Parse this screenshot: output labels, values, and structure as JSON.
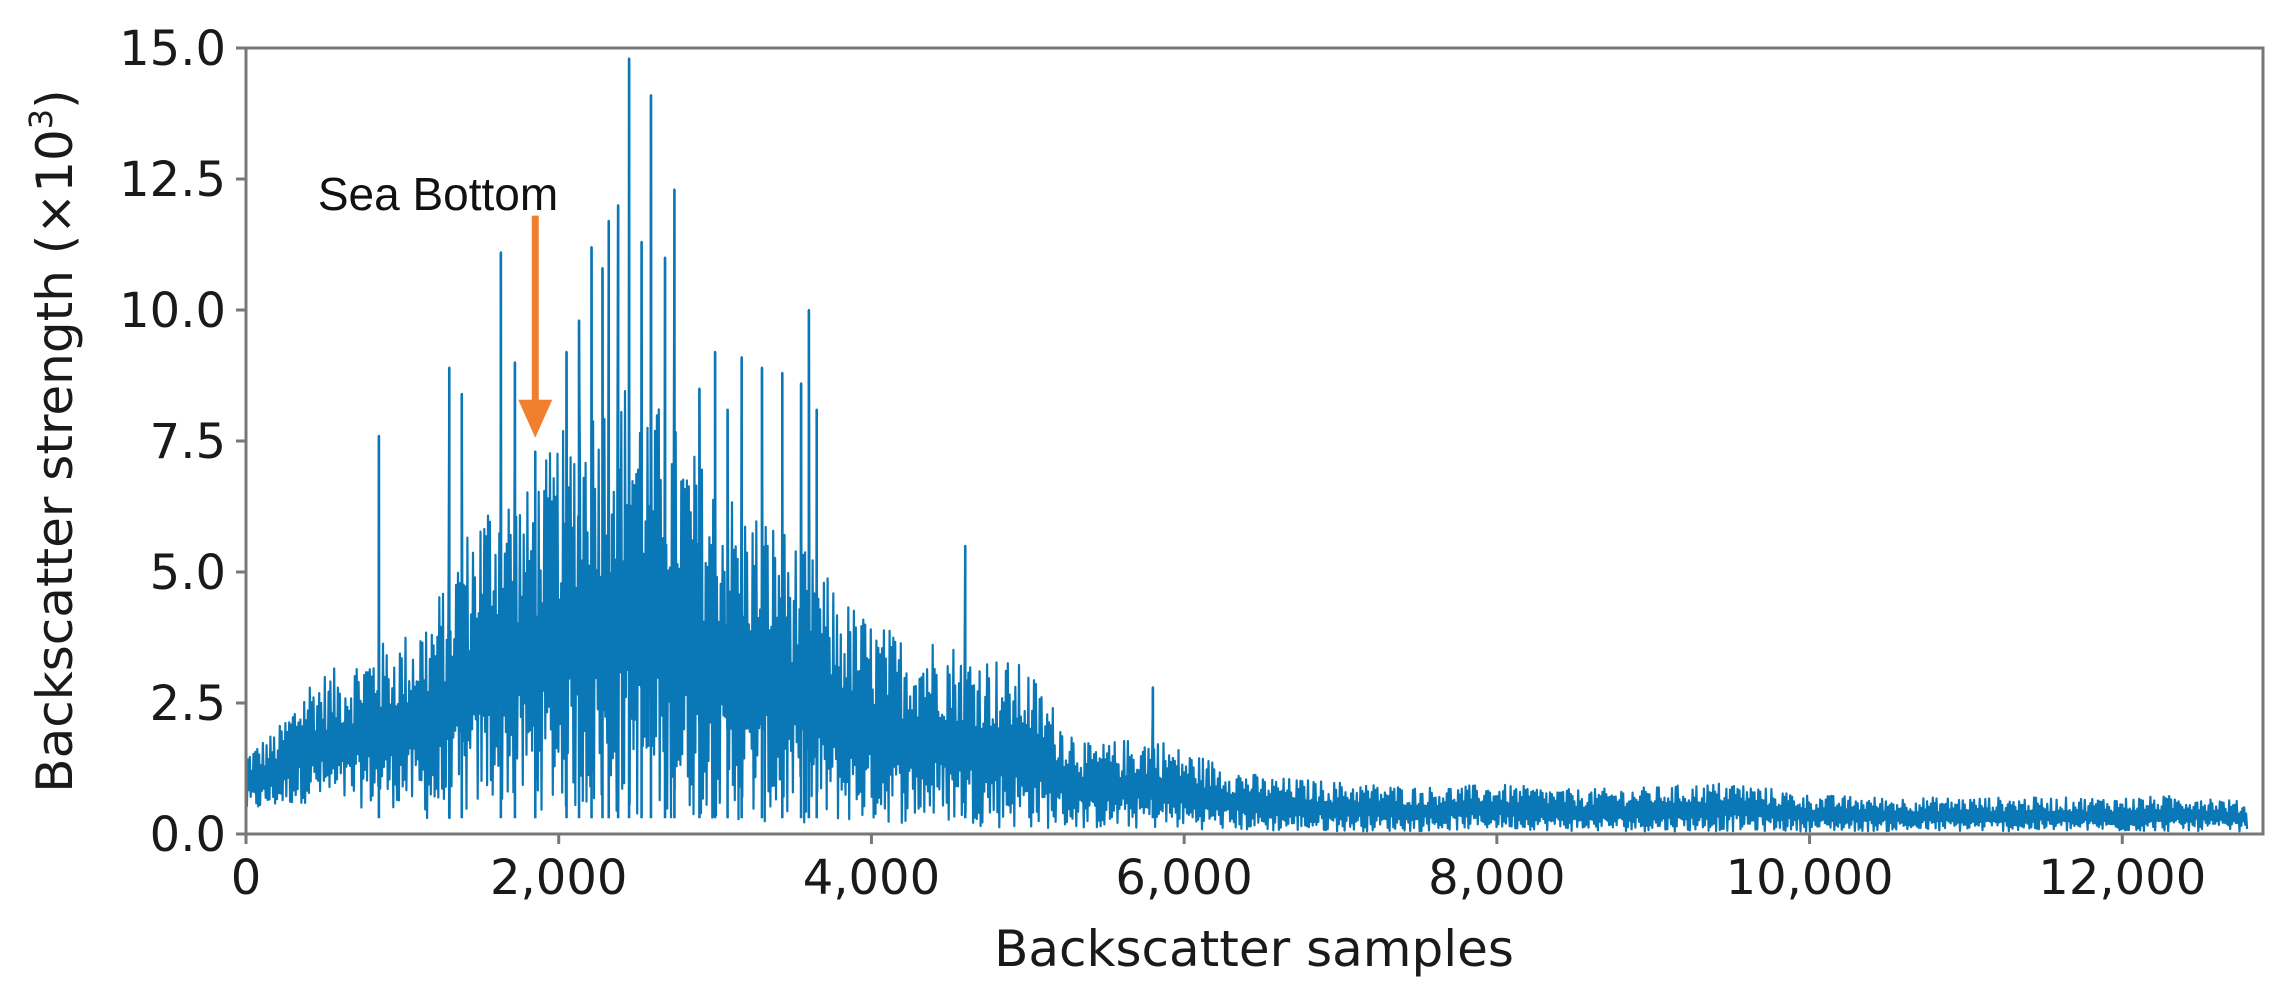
{
  "chart_data": {
    "type": "line",
    "title": "",
    "xlabel": "Backscatter samples",
    "ylabel_text": "Backscatter strength (×10",
    "ylabel_exp": "3",
    "ylabel_close": ")",
    "xlim": [
      0,
      12900
    ],
    "ylim": [
      0,
      15
    ],
    "x_ticks": [
      0,
      2000,
      4000,
      6000,
      8000,
      10000,
      12000
    ],
    "x_tick_labels": [
      "0",
      "2,000",
      "4,000",
      "6,000",
      "8,000",
      "10,000",
      "12,000"
    ],
    "y_ticks": [
      0,
      2.5,
      5,
      7.5,
      10,
      12.5,
      15
    ],
    "y_tick_labels": [
      "0.0",
      "2.5",
      "5.0",
      "7.5",
      "10.0",
      "12.5",
      "15.0"
    ],
    "grid": false,
    "legend": "none",
    "colors": {
      "series": "#0a77b6",
      "annotation_arrow": "#f07f2e",
      "axes": "#777777"
    },
    "series": [
      {
        "envelope": {
          "x": [
            0,
            200,
            400,
            600,
            800,
            1000,
            1200,
            1400,
            1600,
            1800,
            2000,
            2200,
            2400,
            2600,
            2800,
            3000,
            3200,
            3400,
            3600,
            3800,
            4000,
            4200,
            4400,
            4600,
            4800,
            5000,
            5200,
            5400,
            5600,
            5800,
            6000,
            6500,
            7000,
            7500,
            8000,
            8500,
            9000,
            9500,
            10000,
            10500,
            11000,
            11500,
            12000,
            12500,
            12800
          ],
          "y_high": [
            1.6,
            2.0,
            3.0,
            3.2,
            3.6,
            3.8,
            4.4,
            5.8,
            6.8,
            6.6,
            7.6,
            8.4,
            8.8,
            8.4,
            7.6,
            6.8,
            6.4,
            6.0,
            5.4,
            4.6,
            4.1,
            3.8,
            3.8,
            3.6,
            3.4,
            3.2,
            2.3,
            1.7,
            1.8,
            1.9,
            1.6,
            1.1,
            1.0,
            0.9,
            0.95,
            0.85,
            0.9,
            1.0,
            0.75,
            0.7,
            0.7,
            0.7,
            0.7,
            0.75,
            0.6
          ],
          "y_low": [
            0.4,
            0.5,
            0.6,
            0.5,
            0.5,
            0.5,
            0.2,
            0.3,
            0.6,
            0.5,
            0.4,
            0.4,
            0.3,
            0.3,
            0.3,
            0.3,
            0.2,
            0.2,
            0.2,
            0.2,
            0.2,
            0.2,
            0.2,
            0.2,
            0.1,
            0.1,
            0.1,
            0.1,
            0.1,
            0.1,
            0.1,
            0.05,
            0.05,
            0.05,
            0.1,
            0.05,
            0.05,
            0.05,
            0.05,
            0.05,
            0.05,
            0.05,
            0.05,
            0.05,
            0.05
          ]
        },
        "peaks": [
          {
            "x": 850,
            "y": 7.6
          },
          {
            "x": 1300,
            "y": 8.9
          },
          {
            "x": 1380,
            "y": 8.4
          },
          {
            "x": 1630,
            "y": 11.1
          },
          {
            "x": 1720,
            "y": 9.0
          },
          {
            "x": 1850,
            "y": 7.3
          },
          {
            "x": 2050,
            "y": 9.2
          },
          {
            "x": 2130,
            "y": 9.8
          },
          {
            "x": 2210,
            "y": 11.2
          },
          {
            "x": 2280,
            "y": 10.8
          },
          {
            "x": 2320,
            "y": 11.7
          },
          {
            "x": 2380,
            "y": 12.0
          },
          {
            "x": 2450,
            "y": 14.8
          },
          {
            "x": 2530,
            "y": 11.3
          },
          {
            "x": 2590,
            "y": 14.1
          },
          {
            "x": 2680,
            "y": 11.0
          },
          {
            "x": 2740,
            "y": 12.3
          },
          {
            "x": 2900,
            "y": 8.5
          },
          {
            "x": 3000,
            "y": 9.2
          },
          {
            "x": 3080,
            "y": 8.1
          },
          {
            "x": 3170,
            "y": 9.1
          },
          {
            "x": 3300,
            "y": 8.9
          },
          {
            "x": 3430,
            "y": 8.8
          },
          {
            "x": 3550,
            "y": 8.6
          },
          {
            "x": 3600,
            "y": 10.0
          },
          {
            "x": 3650,
            "y": 8.1
          },
          {
            "x": 4600,
            "y": 5.5
          },
          {
            "x": 5800,
            "y": 2.8
          }
        ]
      }
    ],
    "annotations": [
      {
        "text": "Sea Bottom",
        "arrow_x": 1850,
        "arrow_from_y": 11.8,
        "arrow_to_y": 7.6
      }
    ]
  }
}
